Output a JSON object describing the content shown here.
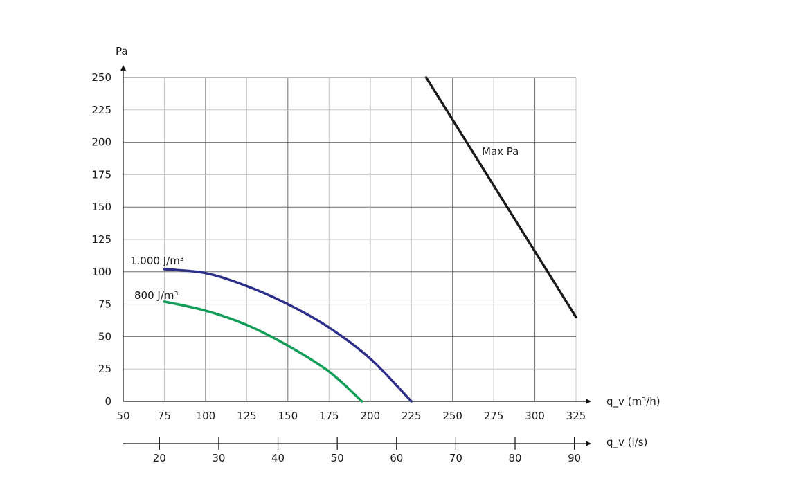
{
  "chart_data": {
    "type": "line",
    "ylabel": "Pa",
    "xlabel": "q_v (m³/h)",
    "x2label": "q_v (l/s)",
    "xlim": [
      50,
      325
    ],
    "ylim": [
      0,
      250
    ],
    "x_ticks": [
      50,
      75,
      100,
      125,
      150,
      175,
      200,
      225,
      250,
      275,
      300,
      325
    ],
    "y_ticks": [
      0,
      25,
      50,
      75,
      100,
      125,
      150,
      175,
      200,
      225,
      250
    ],
    "x2_ticks": [
      20,
      30,
      40,
      50,
      60,
      70,
      80,
      90
    ],
    "grid": true,
    "series": [
      {
        "name": "1.000 J/m³",
        "color": "#2b2f8a",
        "x": [
          75,
          100,
          125,
          150,
          175,
          200,
          225
        ],
        "y": [
          102,
          99,
          89,
          75,
          57,
          33,
          0
        ]
      },
      {
        "name": "800 J/m³",
        "color": "#0f9d58",
        "x": [
          75,
          100,
          125,
          150,
          175,
          195
        ],
        "y": [
          77,
          70,
          59,
          43,
          23,
          0
        ]
      },
      {
        "name": "Max Pa",
        "color": "#1a1a1a",
        "x": [
          234,
          325
        ],
        "y": [
          250,
          65
        ]
      }
    ]
  }
}
